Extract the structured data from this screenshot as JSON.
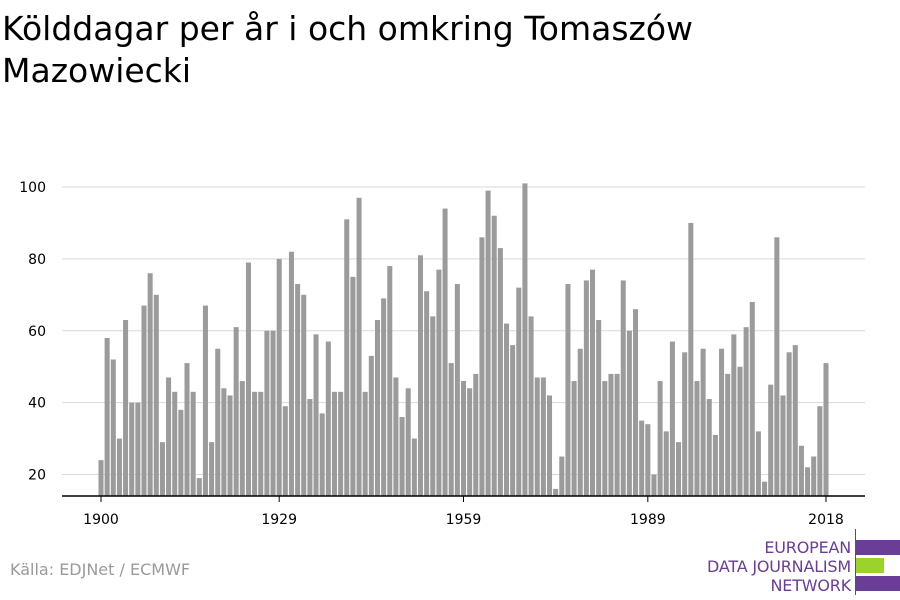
{
  "title": "Kölddagar per år i och omkring Tomaszów Mazowiecki",
  "source": "Källa: EDJNet / ECMWF",
  "logo": {
    "lines": [
      "EUROPEAN",
      "DATA JOURNALISM",
      "NETWORK"
    ],
    "colors": {
      "purple": "#6a3d96",
      "green": "#9bd32b"
    }
  },
  "colors": {
    "bar": "#9b9b9b",
    "grid": "#d9d9d9",
    "axis": "#000000"
  },
  "chart_data": {
    "type": "bar",
    "title": "Kölddagar per år i och omkring Tomaszów Mazowiecki",
    "xlabel": "",
    "ylabel": "",
    "ylim": [
      13,
      102
    ],
    "xlim": [
      1896.5,
      2023.5
    ],
    "y_ticks": [
      20,
      40,
      60,
      80,
      100
    ],
    "x_ticks": [
      1900,
      1929,
      1959,
      1989,
      2018
    ],
    "grid": true,
    "x": [
      1900,
      1901,
      1902,
      1903,
      1904,
      1905,
      1906,
      1907,
      1908,
      1909,
      1910,
      1911,
      1912,
      1913,
      1914,
      1915,
      1916,
      1917,
      1918,
      1919,
      1920,
      1921,
      1922,
      1923,
      1924,
      1925,
      1926,
      1927,
      1928,
      1929,
      1930,
      1931,
      1932,
      1933,
      1934,
      1935,
      1936,
      1937,
      1938,
      1939,
      1940,
      1941,
      1942,
      1943,
      1944,
      1945,
      1946,
      1947,
      1948,
      1949,
      1950,
      1951,
      1952,
      1953,
      1954,
      1955,
      1956,
      1957,
      1958,
      1959,
      1960,
      1961,
      1962,
      1963,
      1964,
      1965,
      1966,
      1967,
      1968,
      1969,
      1970,
      1971,
      1972,
      1973,
      1974,
      1975,
      1976,
      1977,
      1978,
      1979,
      1980,
      1981,
      1982,
      1983,
      1984,
      1985,
      1986,
      1987,
      1988,
      1989,
      1990,
      1991,
      1992,
      1993,
      1994,
      1995,
      1996,
      1997,
      1998,
      1999,
      2000,
      2001,
      2002,
      2003,
      2004,
      2005,
      2006,
      2007,
      2008,
      2009,
      2010,
      2011,
      2012,
      2013,
      2014,
      2015,
      2016,
      2017,
      2018
    ],
    "values": [
      24,
      58,
      52,
      30,
      63,
      40,
      40,
      67,
      76,
      70,
      29,
      47,
      43,
      38,
      51,
      43,
      19,
      67,
      29,
      55,
      44,
      42,
      61,
      46,
      79,
      43,
      43,
      60,
      60,
      80,
      39,
      82,
      73,
      70,
      41,
      59,
      37,
      57,
      43,
      43,
      91,
      75,
      97,
      43,
      53,
      63,
      69,
      78,
      47,
      36,
      44,
      30,
      81,
      71,
      64,
      77,
      94,
      51,
      73,
      46,
      44,
      48,
      86,
      99,
      92,
      83,
      62,
      56,
      72,
      101,
      64,
      47,
      47,
      42,
      16,
      25,
      73,
      46,
      55,
      74,
      77,
      63,
      46,
      48,
      48,
      74,
      60,
      66,
      35,
      34,
      20,
      46,
      32,
      57,
      29,
      54,
      90,
      46,
      55,
      41,
      31,
      55,
      48,
      59,
      50,
      61,
      68,
      32,
      18,
      45,
      86,
      42,
      54,
      56,
      28,
      22,
      25,
      39,
      51
    ]
  }
}
